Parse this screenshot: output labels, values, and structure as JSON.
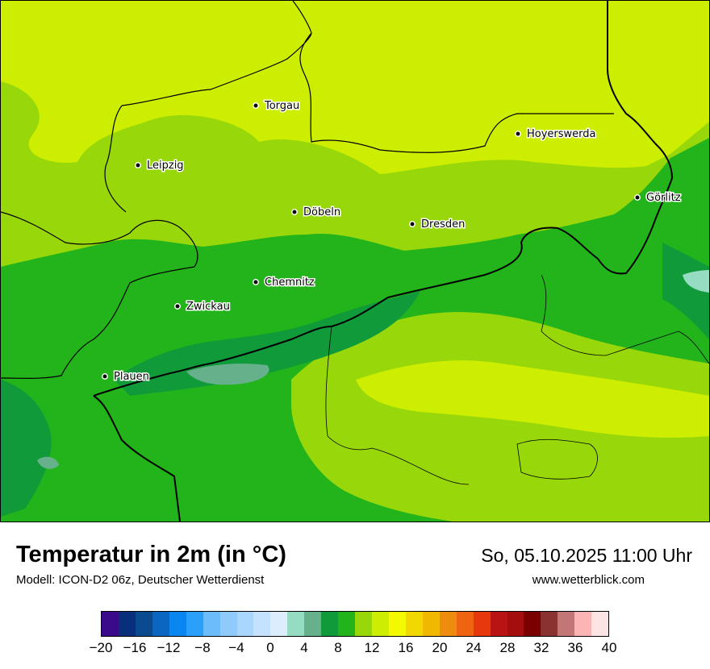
{
  "title": "Temperatur in 2m (in °C)",
  "subtitle": "Modell: ICON-D2 06z, Deutscher Wetterdienst",
  "datetime": "So, 05.10.2025 11:00 Uhr",
  "website": "www.wetterblick.com",
  "cities": [
    {
      "name": "Torgau"
    },
    {
      "name": "Hoyerswerda"
    },
    {
      "name": "Leipzig"
    },
    {
      "name": "Görlitz"
    },
    {
      "name": "Döbeln"
    },
    {
      "name": "Dresden"
    },
    {
      "name": "Chemnitz"
    },
    {
      "name": "Zwickau"
    },
    {
      "name": "Plauen"
    }
  ],
  "legend": {
    "min": -20,
    "max": 40,
    "step": 2,
    "tick_labels": [
      "−20",
      "−16",
      "−12",
      "−8",
      "−4",
      "0",
      "4",
      "8",
      "12",
      "16",
      "20",
      "24",
      "28",
      "32",
      "36",
      "40"
    ],
    "colors": [
      "#3a0a8a",
      "#0a2f7a",
      "#0b4a8e",
      "#0b66c2",
      "#0a86f0",
      "#2aa0fa",
      "#6cbcfc",
      "#8ecafc",
      "#a9d6fd",
      "#c4e2fd",
      "#dceefe",
      "#96dcc2",
      "#66b08c",
      "#109a3a",
      "#22b41a",
      "#98d80a",
      "#cdee00",
      "#f2f900",
      "#f0d800",
      "#f0b800",
      "#ee8c10",
      "#ee6410",
      "#e6380c",
      "#b81414",
      "#a40e0e",
      "#7a0000",
      "#8a3232",
      "#c27676",
      "#fcb4b4",
      "#fde4e4"
    ]
  },
  "palette": {
    "t16": "#cdee00",
    "t14": "#98d80a",
    "t12": "#22b41a",
    "t10": "#109a3a",
    "t6": "#66b08c",
    "t4": "#96dcc2"
  }
}
